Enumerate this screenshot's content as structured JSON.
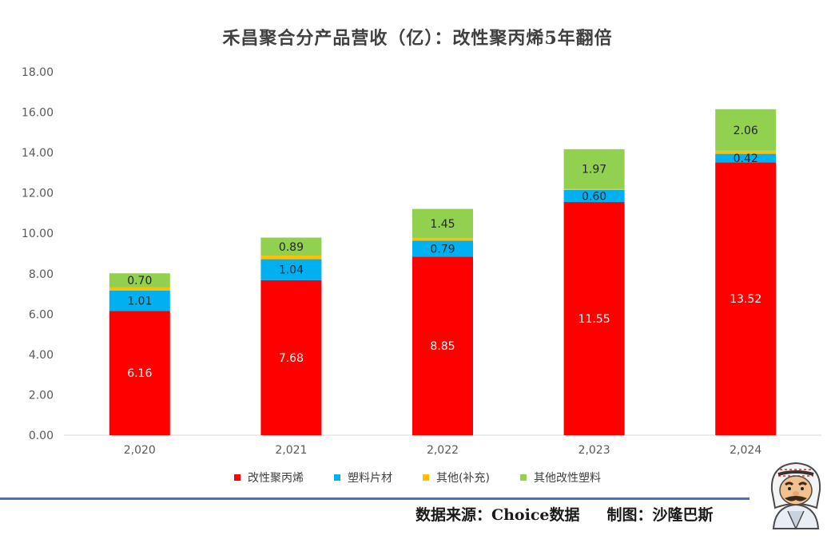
{
  "colors": {
    "series": [
      "#FF0000",
      "#00B0F0",
      "#FFC000",
      "#92D050"
    ],
    "grid": "#D9D9D9",
    "rule": "#4472C4"
  },
  "chart_data": {
    "type": "bar",
    "stacked": true,
    "title": "禾昌聚合分产品营收（亿）：改性聚丙烯5年翻倍",
    "categories": [
      "2,020",
      "2,021",
      "2,022",
      "2,023",
      "2,024"
    ],
    "series": [
      {
        "name": "改性聚丙烯",
        "values": [
          6.16,
          7.68,
          8.85,
          11.55,
          13.52
        ],
        "labels": [
          "6.16",
          "7.68",
          "8.85",
          "11.55",
          "13.52"
        ]
      },
      {
        "name": "塑料片材",
        "values": [
          1.01,
          1.04,
          0.79,
          0.6,
          0.42
        ],
        "labels": [
          "1.01",
          "1.04",
          "0.79",
          "0.60",
          "0.42"
        ]
      },
      {
        "name": "其他(补充)",
        "values": [
          0.15,
          0.18,
          0.12,
          0.05,
          0.15
        ],
        "labels": [
          "",
          "",
          "",
          "",
          ""
        ]
      },
      {
        "name": "其他改性塑料",
        "values": [
          0.7,
          0.89,
          1.45,
          1.97,
          2.06
        ],
        "labels": [
          "0.70",
          "0.89",
          "1.45",
          "1.97",
          "2.06"
        ]
      }
    ],
    "ylim": [
      0,
      18
    ],
    "yticks": [
      "0.00",
      "2.00",
      "4.00",
      "6.00",
      "8.00",
      "10.00",
      "12.00",
      "14.00",
      "16.00",
      "18.00"
    ],
    "grid": false,
    "legend_position": "bottom"
  },
  "footer": {
    "source": "数据来源：Choice数据",
    "credit": "制图：沙隆巴斯"
  },
  "mascot_icon": "cartoon-avatar-icon"
}
